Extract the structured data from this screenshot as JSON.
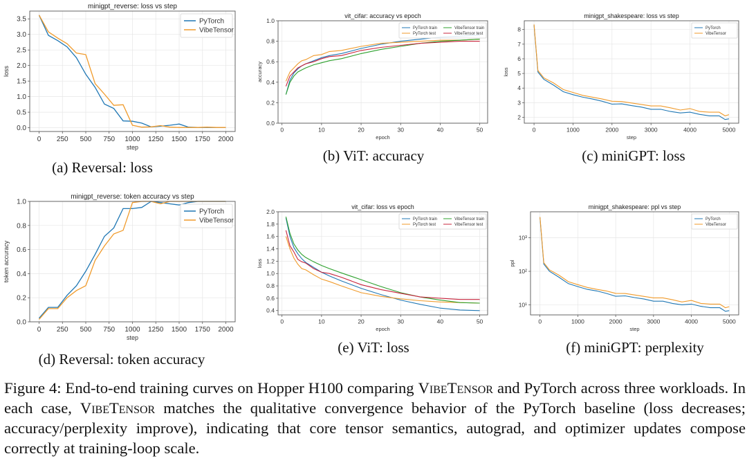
{
  "colors": {
    "pytorch": "#1f77b4",
    "vibetensor": "#f09a2a",
    "vibetensor_train": "#2ca02c",
    "vibetensor_test": "#c8243c"
  },
  "subcaptions": [
    "(a) Reversal: loss",
    "(b) ViT: accuracy",
    "(c) miniGPT: loss",
    "(d) Reversal: token accuracy",
    "(e) ViT: loss",
    "(f) miniGPT: perplexity"
  ],
  "caption": {
    "p1": "Figure 4: End-to-end training curves on Hopper H100 comparing ",
    "name1": "VibeTensor",
    "p2": " and PyTorch across three workloads. In each case, ",
    "name2": "VibeTensor",
    "p3": " matches the qualitative convergence behavior of the PyTorch baseline (loss decreases; accuracy/perplexity improve), indicating that core tensor semantics, autograd, and optimizer updates compose correctly at training-loop scale."
  },
  "chart_data": [
    {
      "type": "line",
      "title": "minigpt_reverse: loss vs step",
      "xlabel": "step",
      "ylabel": "loss",
      "xlim": [
        -100,
        2100
      ],
      "ylim": [
        -0.12,
        3.75
      ],
      "grid": true,
      "legend": "top-right",
      "xticks": [
        0,
        250,
        500,
        750,
        1000,
        1250,
        1500,
        1750,
        2000
      ],
      "xticklabels": [
        "0",
        "250",
        "500",
        "750",
        "1000",
        "1250",
        "1500",
        "1750",
        "2000"
      ],
      "yticks": [
        0,
        0.5,
        1,
        1.5,
        2,
        2.5,
        3,
        3.5
      ],
      "yticklabels": [
        "0.0",
        "0.5",
        "1.0",
        "1.5",
        "2.0",
        "2.5",
        "3.0",
        "3.5"
      ],
      "x": [
        0,
        100,
        200,
        300,
        400,
        500,
        600,
        700,
        800,
        900,
        1000,
        1100,
        1200,
        1300,
        1400,
        1500,
        1600,
        1700,
        1800,
        1900,
        2000
      ],
      "series": [
        {
          "name": "PyTorch",
          "color": "#1f77b4",
          "values": [
            3.62,
            2.97,
            2.8,
            2.6,
            2.25,
            1.72,
            1.3,
            0.76,
            0.62,
            0.22,
            0.21,
            0.15,
            0.03,
            0.05,
            0.08,
            0.12,
            0.02,
            0.01,
            0.01,
            0.01,
            0.01
          ]
        },
        {
          "name": "VibeTensor",
          "color": "#f09a2a",
          "values": [
            3.62,
            3.08,
            2.88,
            2.7,
            2.4,
            2.35,
            1.42,
            1.08,
            0.72,
            0.74,
            0.08,
            0.02,
            0.03,
            0.07,
            0.02,
            0.01,
            0.01,
            0.01,
            0.02,
            0.01,
            0.01
          ]
        }
      ]
    },
    {
      "type": "line",
      "title": "vit_cifar: accuracy vs epoch",
      "xlabel": "epoch",
      "ylabel": "accuracy",
      "xlim": [
        -1,
        52
      ],
      "ylim": [
        0,
        1
      ],
      "grid": true,
      "legend": "top-right",
      "xticks": [
        0,
        10,
        20,
        30,
        40,
        50
      ],
      "xticklabels": [
        "0",
        "10",
        "20",
        "30",
        "40",
        "50"
      ],
      "yticks": [
        0,
        0.2,
        0.4,
        0.6,
        0.8,
        1.0
      ],
      "yticklabels": [
        "0.0",
        "0.2",
        "0.4",
        "0.6",
        "0.8",
        "1.0"
      ],
      "x": [
        1,
        2,
        3,
        4,
        5,
        6,
        8,
        10,
        12,
        15,
        20,
        25,
        30,
        35,
        40,
        45,
        50
      ],
      "series": [
        {
          "name": "PyTorch train",
          "color": "#1f77b4",
          "values": [
            0.28,
            0.42,
            0.49,
            0.53,
            0.56,
            0.58,
            0.61,
            0.64,
            0.66,
            0.68,
            0.73,
            0.77,
            0.8,
            0.82,
            0.84,
            0.85,
            0.86
          ]
        },
        {
          "name": "PyTorch test",
          "color": "#f09a2a",
          "values": [
            0.41,
            0.5,
            0.54,
            0.58,
            0.61,
            0.62,
            0.66,
            0.67,
            0.7,
            0.71,
            0.75,
            0.78,
            0.79,
            0.8,
            0.81,
            0.81,
            0.82
          ]
        },
        {
          "name": "VibeTensor train",
          "color": "#2ca02c",
          "values": [
            0.28,
            0.4,
            0.46,
            0.5,
            0.52,
            0.54,
            0.57,
            0.59,
            0.61,
            0.63,
            0.68,
            0.72,
            0.75,
            0.78,
            0.8,
            0.81,
            0.82
          ]
        },
        {
          "name": "VibeTensor test",
          "color": "#c8243c",
          "values": [
            0.36,
            0.46,
            0.5,
            0.54,
            0.56,
            0.58,
            0.6,
            0.63,
            0.65,
            0.66,
            0.71,
            0.74,
            0.76,
            0.78,
            0.79,
            0.8,
            0.8
          ]
        }
      ]
    },
    {
      "type": "line",
      "title": "minigpt_shakespeare: loss vs step",
      "xlabel": "step",
      "ylabel": "loss",
      "xlim": [
        -250,
        5250
      ],
      "ylim": [
        1.6,
        8.6
      ],
      "grid": true,
      "legend": "top-right",
      "xticks": [
        0,
        1000,
        2000,
        3000,
        4000,
        5000
      ],
      "xticklabels": [
        "0",
        "1000",
        "2000",
        "3000",
        "4000",
        "5000"
      ],
      "yticks": [
        2,
        3,
        4,
        5,
        6,
        7,
        8
      ],
      "yticklabels": [
        "2",
        "3",
        "4",
        "5",
        "6",
        "7",
        "8"
      ],
      "x": [
        0,
        100,
        250,
        500,
        750,
        1000,
        1250,
        1500,
        1750,
        2000,
        2250,
        2500,
        2750,
        3000,
        3250,
        3500,
        3750,
        4000,
        4250,
        4500,
        4750,
        4900,
        5000
      ],
      "series": [
        {
          "name": "PyTorch",
          "color": "#1f77b4",
          "values": [
            8.3,
            5.1,
            4.6,
            4.2,
            3.75,
            3.55,
            3.38,
            3.25,
            3.1,
            2.9,
            2.92,
            2.8,
            2.7,
            2.55,
            2.55,
            2.4,
            2.3,
            2.35,
            2.2,
            2.1,
            2.1,
            1.85,
            1.9
          ]
        },
        {
          "name": "VibeTensor",
          "color": "#f09a2a",
          "values": [
            8.35,
            5.2,
            4.7,
            4.35,
            3.9,
            3.7,
            3.5,
            3.38,
            3.25,
            3.1,
            3.08,
            2.98,
            2.88,
            2.78,
            2.78,
            2.65,
            2.5,
            2.6,
            2.4,
            2.35,
            2.35,
            2.1,
            2.18
          ]
        }
      ]
    },
    {
      "type": "line",
      "title": "minigpt_reverse: token accuracy vs step",
      "xlabel": "step",
      "ylabel": "token accuracy",
      "xlim": [
        -100,
        2100
      ],
      "ylim": [
        0,
        1
      ],
      "grid": true,
      "legend": "top-right",
      "xticks": [
        0,
        250,
        500,
        750,
        1000,
        1250,
        1500,
        1750,
        2000
      ],
      "xticklabels": [
        "0",
        "250",
        "500",
        "750",
        "1000",
        "1250",
        "1500",
        "1750",
        "2000"
      ],
      "yticks": [
        0,
        0.2,
        0.4,
        0.6,
        0.8,
        1.0
      ],
      "yticklabels": [
        "0.0",
        "0.2",
        "0.4",
        "0.6",
        "0.8",
        "1.0"
      ],
      "x": [
        0,
        100,
        200,
        300,
        400,
        500,
        600,
        700,
        800,
        900,
        1000,
        1100,
        1200,
        1300,
        1400,
        1500,
        1600,
        1700,
        1800,
        1900,
        2000
      ],
      "series": [
        {
          "name": "PyTorch",
          "color": "#1f77b4",
          "values": [
            0.03,
            0.12,
            0.12,
            0.22,
            0.3,
            0.42,
            0.56,
            0.71,
            0.78,
            0.94,
            0.94,
            0.95,
            1.0,
            0.99,
            0.98,
            0.97,
            0.99,
            1.0,
            1.0,
            1.0,
            1.0
          ]
        },
        {
          "name": "VibeTensor",
          "color": "#f09a2a",
          "values": [
            0.02,
            0.11,
            0.11,
            0.2,
            0.26,
            0.3,
            0.51,
            0.63,
            0.73,
            0.76,
            0.99,
            1.0,
            1.0,
            0.98,
            1.0,
            1.0,
            1.0,
            1.0,
            1.0,
            1.0,
            1.0
          ]
        }
      ]
    },
    {
      "type": "line",
      "title": "vit_cifar: loss vs epoch",
      "xlabel": "epoch",
      "ylabel": "loss",
      "xlim": [
        -1,
        52
      ],
      "ylim": [
        0.33,
        2.0
      ],
      "grid": true,
      "legend": "top-right",
      "xticks": [
        0,
        10,
        20,
        30,
        40,
        50
      ],
      "xticklabels": [
        "0",
        "10",
        "20",
        "30",
        "40",
        "50"
      ],
      "yticks": [
        0.4,
        0.6,
        0.8,
        1.0,
        1.2,
        1.4,
        1.6,
        1.8,
        2.0
      ],
      "yticklabels": [
        "0.4",
        "0.6",
        "0.8",
        "1.0",
        "1.2",
        "1.4",
        "1.6",
        "1.8",
        "2.0"
      ],
      "x": [
        1,
        2,
        3,
        4,
        5,
        6,
        8,
        10,
        12,
        15,
        20,
        25,
        30,
        35,
        40,
        45,
        50
      ],
      "series": [
        {
          "name": "PyTorch train",
          "color": "#1f77b4",
          "values": [
            1.9,
            1.6,
            1.42,
            1.32,
            1.24,
            1.18,
            1.1,
            1.02,
            0.96,
            0.88,
            0.76,
            0.66,
            0.57,
            0.5,
            0.44,
            0.41,
            0.4
          ]
        },
        {
          "name": "PyTorch test",
          "color": "#f09a2a",
          "values": [
            1.6,
            1.4,
            1.25,
            1.15,
            1.08,
            1.06,
            0.98,
            0.91,
            0.87,
            0.8,
            0.69,
            0.63,
            0.59,
            0.56,
            0.54,
            0.53,
            0.52
          ]
        },
        {
          "name": "VibeTensor train",
          "color": "#2ca02c",
          "values": [
            1.92,
            1.65,
            1.48,
            1.38,
            1.31,
            1.26,
            1.19,
            1.13,
            1.08,
            1.01,
            0.9,
            0.79,
            0.69,
            0.62,
            0.57,
            0.53,
            0.52
          ]
        },
        {
          "name": "VibeTensor test",
          "color": "#c8243c",
          "values": [
            1.7,
            1.45,
            1.35,
            1.23,
            1.19,
            1.17,
            1.08,
            1.02,
            1.0,
            0.94,
            0.82,
            0.74,
            0.68,
            0.62,
            0.6,
            0.58,
            0.58
          ]
        }
      ]
    },
    {
      "type": "line",
      "title": "minigpt_shakespeare: ppl vs step",
      "xlabel": "step",
      "ylabel": "ppl",
      "xlim": [
        -250,
        5250
      ],
      "ylim": [
        5,
        6000
      ],
      "yscale": "log",
      "grid": true,
      "legend": "top-right",
      "xticks": [
        0,
        1000,
        2000,
        3000,
        4000,
        5000
      ],
      "xticklabels": [
        "0",
        "1000",
        "2000",
        "3000",
        "4000",
        "5000"
      ],
      "yticks": [
        10,
        100,
        1000
      ],
      "yticklabels": [
        "10¹",
        "10²",
        "10³"
      ],
      "x": [
        0,
        100,
        250,
        500,
        750,
        1000,
        1250,
        1500,
        1750,
        2000,
        2250,
        2500,
        2750,
        3000,
        3250,
        3500,
        3750,
        4000,
        4250,
        4500,
        4750,
        4900,
        5000
      ],
      "series": [
        {
          "name": "PyTorch",
          "color": "#1f77b4",
          "values": [
            4000,
            164,
            100,
            67,
            43,
            35,
            29,
            26,
            22,
            18,
            18.5,
            16.4,
            14.9,
            12.8,
            12.8,
            11,
            10,
            10.5,
            9,
            8.2,
            8.2,
            6.4,
            6.7
          ]
        },
        {
          "name": "VibeTensor",
          "color": "#f09a2a",
          "values": [
            4200,
            181,
            110,
            77,
            49,
            40,
            33,
            29,
            26,
            22,
            21.8,
            19.7,
            17.8,
            16.1,
            16.1,
            14.2,
            12.2,
            13.5,
            11,
            10.5,
            10.5,
            8.2,
            8.8
          ]
        }
      ]
    }
  ]
}
